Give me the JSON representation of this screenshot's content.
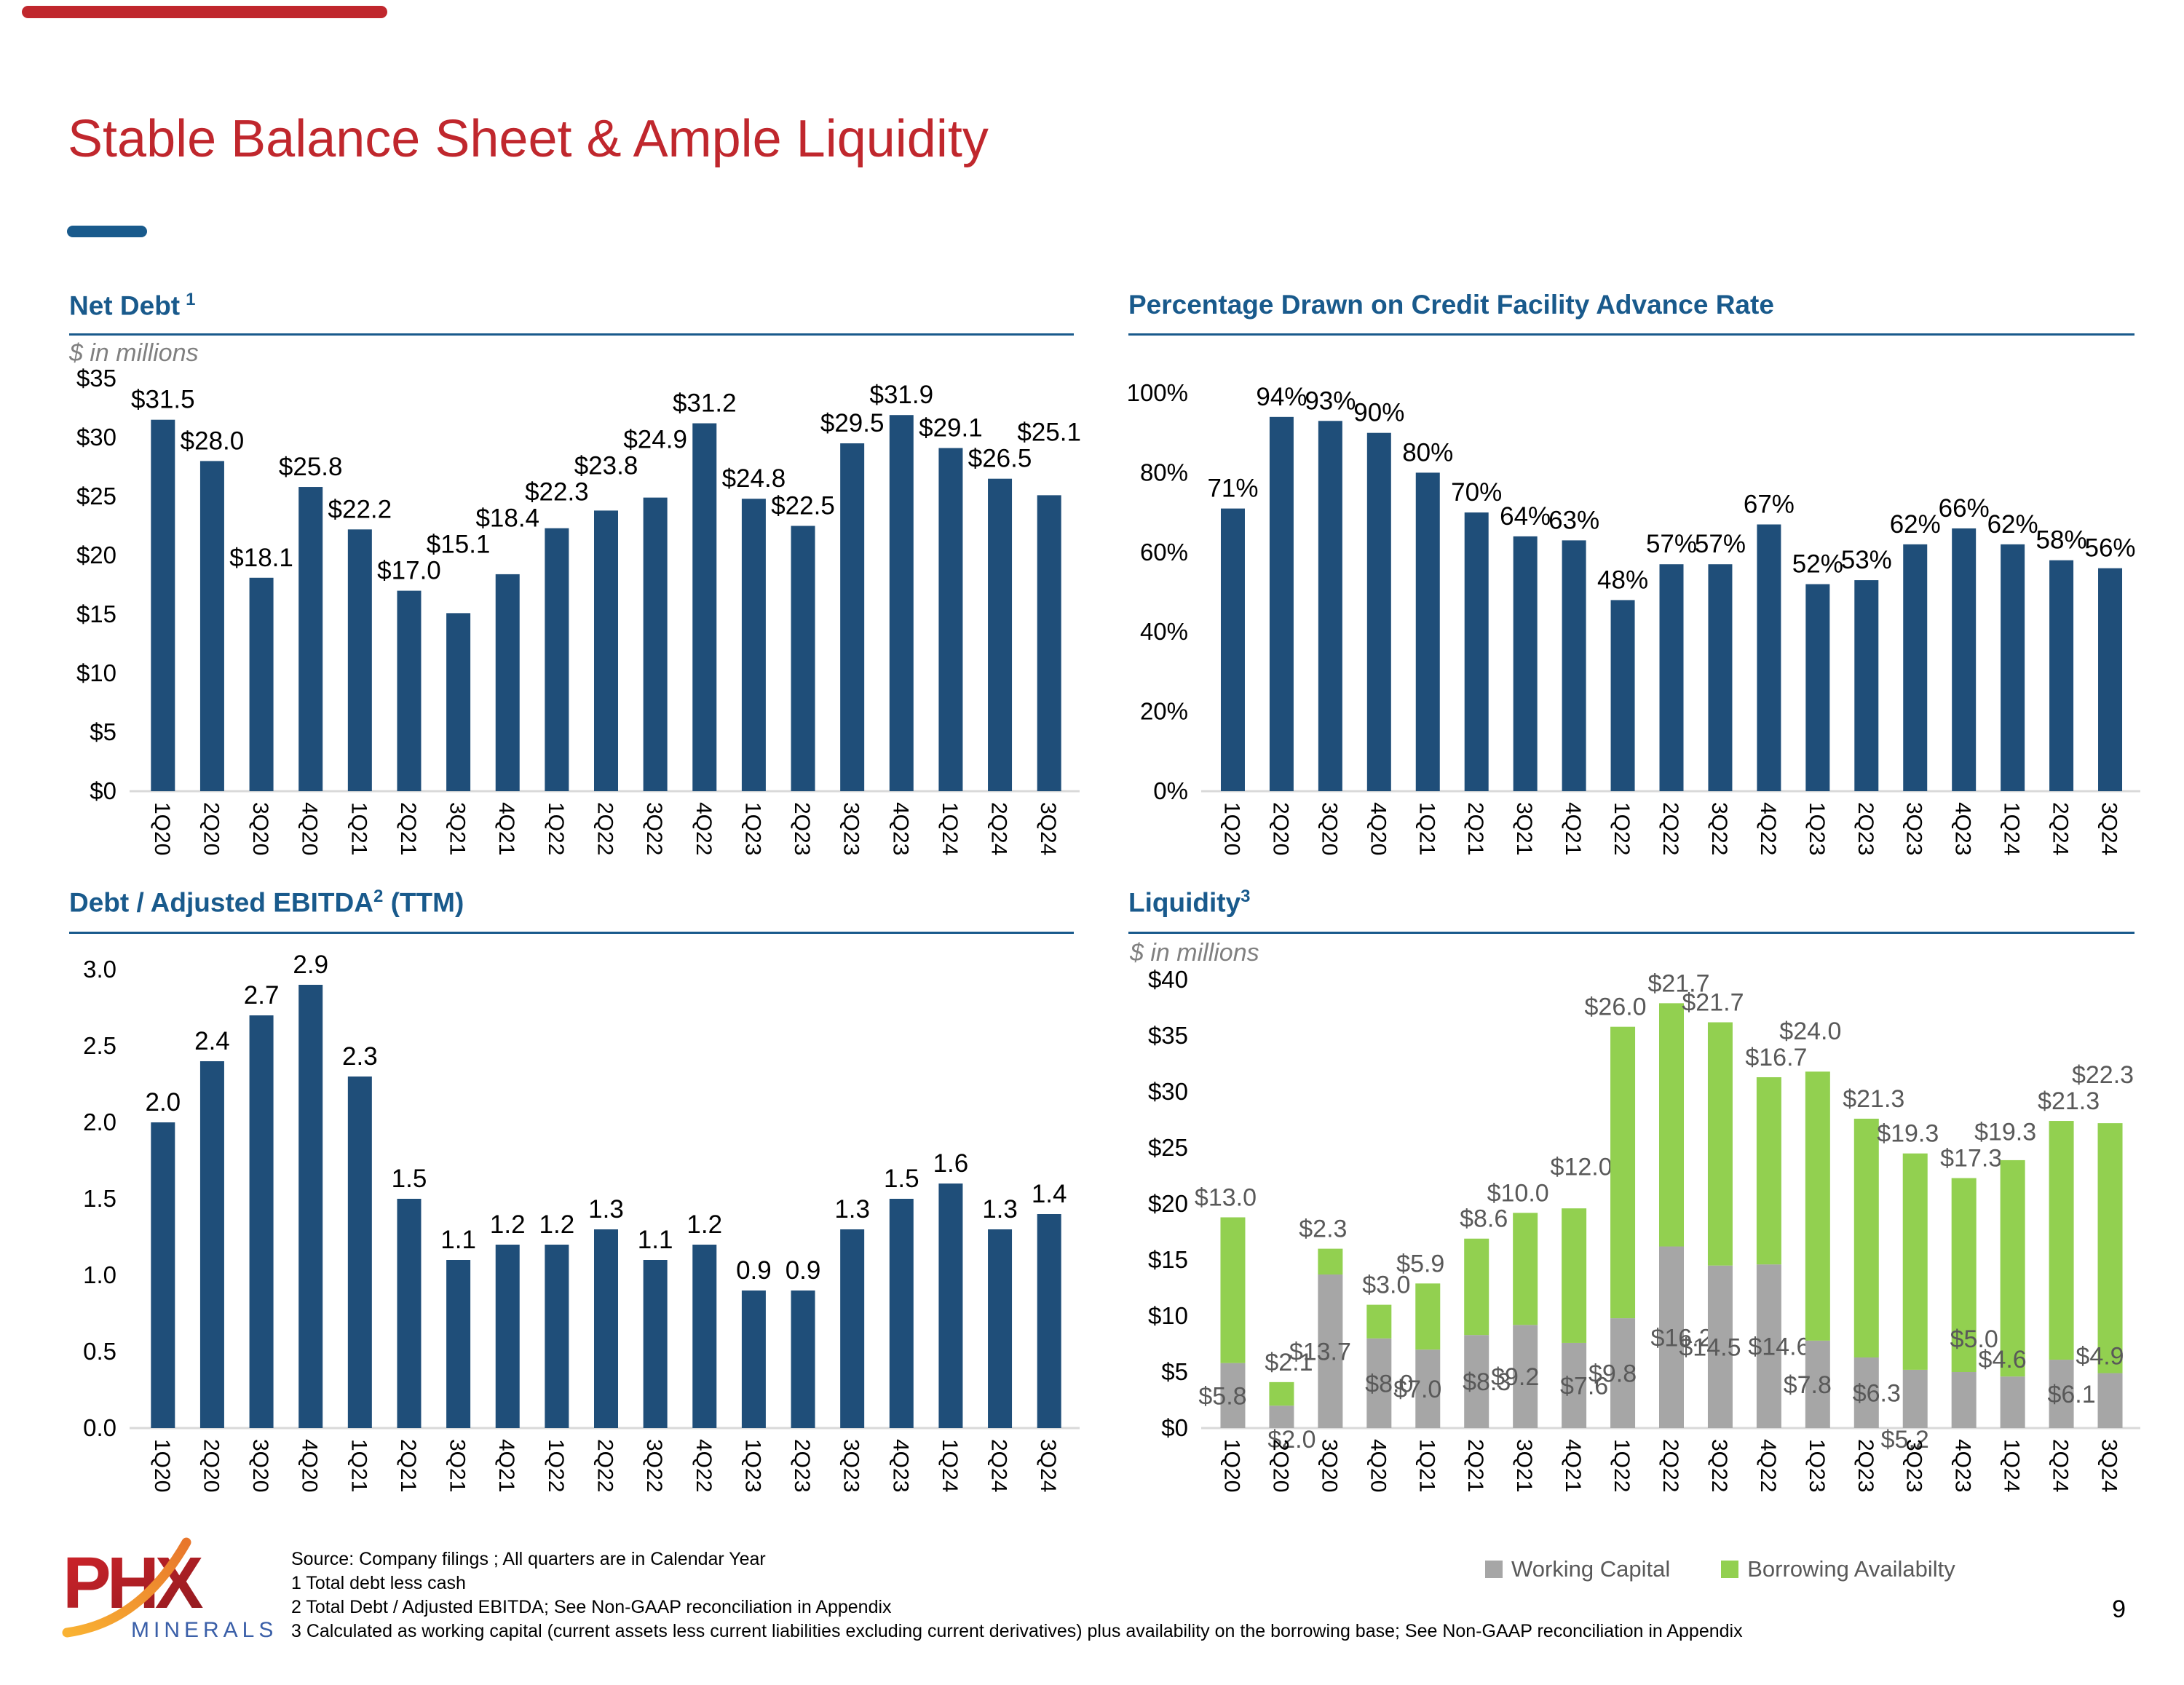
{
  "slide": {
    "title": "Stable Balance Sheet & Ample Liquidity",
    "page_number": "9",
    "footnotes": [
      "Source: Company filings ; All quarters are in Calendar Year",
      "1 Total debt less cash",
      "2 Total Debt / Adjusted EBITDA;  See Non-GAAP reconciliation in Appendix",
      "3 Calculated as working capital (current assets less current liabilities excluding current derivatives) plus availability on the borrowing base; See Non-GAAP reconciliation in Appendix"
    ],
    "logo": {
      "text": "PHX",
      "subtext": "MINERALS"
    }
  },
  "colors": {
    "title_red": "#C0272D",
    "heading_blue": "#195A8C",
    "bar_navy": "#1F4E79",
    "green": "#92D050",
    "gray": "#A6A6A6",
    "axis_line": "#D9D9D9",
    "muted_text": "#808080",
    "label_gray": "#595959",
    "logo_blue": "#3A5FA8",
    "logo_orange": "#F9A23B"
  },
  "quarters": [
    "1Q20",
    "2Q20",
    "3Q20",
    "4Q20",
    "1Q21",
    "2Q21",
    "3Q21",
    "4Q21",
    "1Q22",
    "2Q22",
    "3Q22",
    "4Q22",
    "1Q23",
    "2Q23",
    "3Q23",
    "4Q23",
    "1Q24",
    "2Q24",
    "3Q24"
  ],
  "chart_data": [
    {
      "id": "net_debt",
      "type": "bar",
      "title": "Net Debt",
      "title_sup": "1",
      "subtitle": "$ in millions",
      "categories": [
        "1Q20",
        "2Q20",
        "3Q20",
        "4Q20",
        "1Q21",
        "2Q21",
        "3Q21",
        "4Q21",
        "1Q22",
        "2Q22",
        "3Q22",
        "4Q22",
        "1Q23",
        "2Q23",
        "3Q23",
        "4Q23",
        "1Q24",
        "2Q24",
        "3Q24"
      ],
      "values": [
        31.5,
        28.0,
        18.1,
        25.8,
        22.2,
        17.0,
        15.1,
        18.4,
        22.3,
        23.8,
        24.9,
        31.2,
        24.8,
        22.5,
        29.5,
        31.9,
        29.1,
        26.5,
        25.1
      ],
      "labels": [
        "$31.5",
        "$28.0",
        "$18.1",
        "$25.8",
        "$22.2",
        "$17.0",
        "$15.1",
        "$18.4",
        "$22.3",
        "$23.8",
        "$24.9",
        "$31.2",
        "$24.8",
        "$22.5",
        "$29.5",
        "$31.9",
        "$29.1",
        "$26.5",
        "$25.1"
      ],
      "y_ticks": [
        "$0",
        "$5",
        "$10",
        "$15",
        "$20",
        "$25",
        "$30",
        "$35"
      ],
      "ylim": [
        0,
        35
      ],
      "grid": false,
      "legend_position": "none"
    },
    {
      "id": "pct_drawn",
      "type": "bar",
      "title": "Percentage Drawn on Credit Facility Advance Rate",
      "categories": [
        "1Q20",
        "2Q20",
        "3Q20",
        "4Q20",
        "1Q21",
        "2Q21",
        "3Q21",
        "4Q21",
        "1Q22",
        "2Q22",
        "3Q22",
        "4Q22",
        "1Q23",
        "2Q23",
        "3Q23",
        "4Q23",
        "1Q24",
        "2Q24",
        "3Q24"
      ],
      "values": [
        71,
        94,
        93,
        90,
        80,
        70,
        64,
        63,
        48,
        57,
        57,
        67,
        52,
        53,
        62,
        66,
        62,
        58,
        56
      ],
      "labels": [
        "71%",
        "94%",
        "93%",
        "90%",
        "80%",
        "70%",
        "64%",
        "63%",
        "48%",
        "57%",
        "57%",
        "67%",
        "52%",
        "53%",
        "62%",
        "66%",
        "62%",
        "58%",
        "56%"
      ],
      "y_ticks": [
        "0%",
        "20%",
        "40%",
        "60%",
        "80%",
        "100%"
      ],
      "ylim": [
        0,
        100
      ],
      "grid": false,
      "legend_position": "none"
    },
    {
      "id": "debt_ebitda",
      "type": "bar",
      "title": "Debt / Adjusted EBITDA",
      "title_sup": "2",
      "title_suffix": " (TTM)",
      "categories": [
        "1Q20",
        "2Q20",
        "3Q20",
        "4Q20",
        "1Q21",
        "2Q21",
        "3Q21",
        "4Q21",
        "1Q22",
        "2Q22",
        "3Q22",
        "4Q22",
        "1Q23",
        "2Q23",
        "3Q23",
        "4Q23",
        "1Q24",
        "2Q24",
        "3Q24"
      ],
      "values": [
        2.0,
        2.4,
        2.7,
        2.9,
        2.3,
        1.5,
        1.1,
        1.2,
        1.2,
        1.3,
        1.1,
        1.2,
        0.9,
        0.9,
        1.3,
        1.5,
        1.6,
        1.3,
        1.4
      ],
      "labels": [
        "2.0",
        "2.4",
        "2.7",
        "2.9",
        "2.3",
        "1.5",
        "1.1",
        "1.2",
        "1.2",
        "1.3",
        "1.1",
        "1.2",
        "0.9",
        "0.9",
        "1.3",
        "1.5",
        "1.6",
        "1.3",
        "1.4"
      ],
      "y_ticks": [
        "0.0",
        "0.5",
        "1.0",
        "1.5",
        "2.0",
        "2.5",
        "3.0"
      ],
      "ylim": [
        0,
        3
      ],
      "grid": false,
      "legend_position": "none"
    },
    {
      "id": "liquidity",
      "type": "stacked-bar",
      "title": "Liquidity",
      "title_sup": "3",
      "subtitle": "$ in millions",
      "categories": [
        "1Q20",
        "2Q20",
        "3Q20",
        "4Q20",
        "1Q21",
        "2Q21",
        "3Q21",
        "4Q21",
        "1Q22",
        "2Q22",
        "3Q22",
        "4Q22",
        "1Q23",
        "2Q23",
        "3Q23",
        "4Q23",
        "1Q24",
        "2Q24",
        "3Q24"
      ],
      "series": [
        {
          "name": "Working Capital",
          "color_key": "gray",
          "values": [
            5.8,
            2.0,
            13.7,
            8.0,
            7.0,
            8.3,
            9.2,
            7.6,
            9.8,
            16.2,
            14.5,
            14.6,
            7.8,
            6.3,
            5.2,
            5.0,
            4.6,
            6.1,
            4.9
          ],
          "labels": [
            "$5.8",
            "$2.0",
            "$13.7",
            "$8.0",
            "$7.0",
            "$8.3",
            "$9.2",
            "$7.6",
            "$9.8",
            "$16.2",
            "$14.5",
            "$14.6",
            "$7.8",
            "$6.3",
            "$5.2",
            "$5.0",
            "$4.6",
            "$6.1",
            "$4.9"
          ]
        },
        {
          "name": "Borrowing Availabilty",
          "color_key": "green",
          "values": [
            13.0,
            2.1,
            2.3,
            3.0,
            5.9,
            8.6,
            10.0,
            12.0,
            26.0,
            21.7,
            21.7,
            16.7,
            24.0,
            21.3,
            19.3,
            17.3,
            19.3,
            21.3,
            22.3
          ],
          "labels": [
            "$13.0",
            "$2.1",
            "$2.3",
            "$3.0",
            "$5.9",
            "$8.6",
            "$10.0",
            "$12.0",
            "$26.0",
            "$21.7",
            "$21.7",
            "$16.7",
            "$24.0",
            "$21.3",
            "$19.3",
            "$17.3",
            "$19.3",
            "$21.3",
            "$22.3"
          ]
        }
      ],
      "y_ticks": [
        "$0",
        "$5",
        "$10",
        "$15",
        "$20",
        "$25",
        "$30",
        "$35",
        "$40"
      ],
      "ylim": [
        0,
        40
      ],
      "grid": false,
      "legend_position": "bottom"
    }
  ]
}
